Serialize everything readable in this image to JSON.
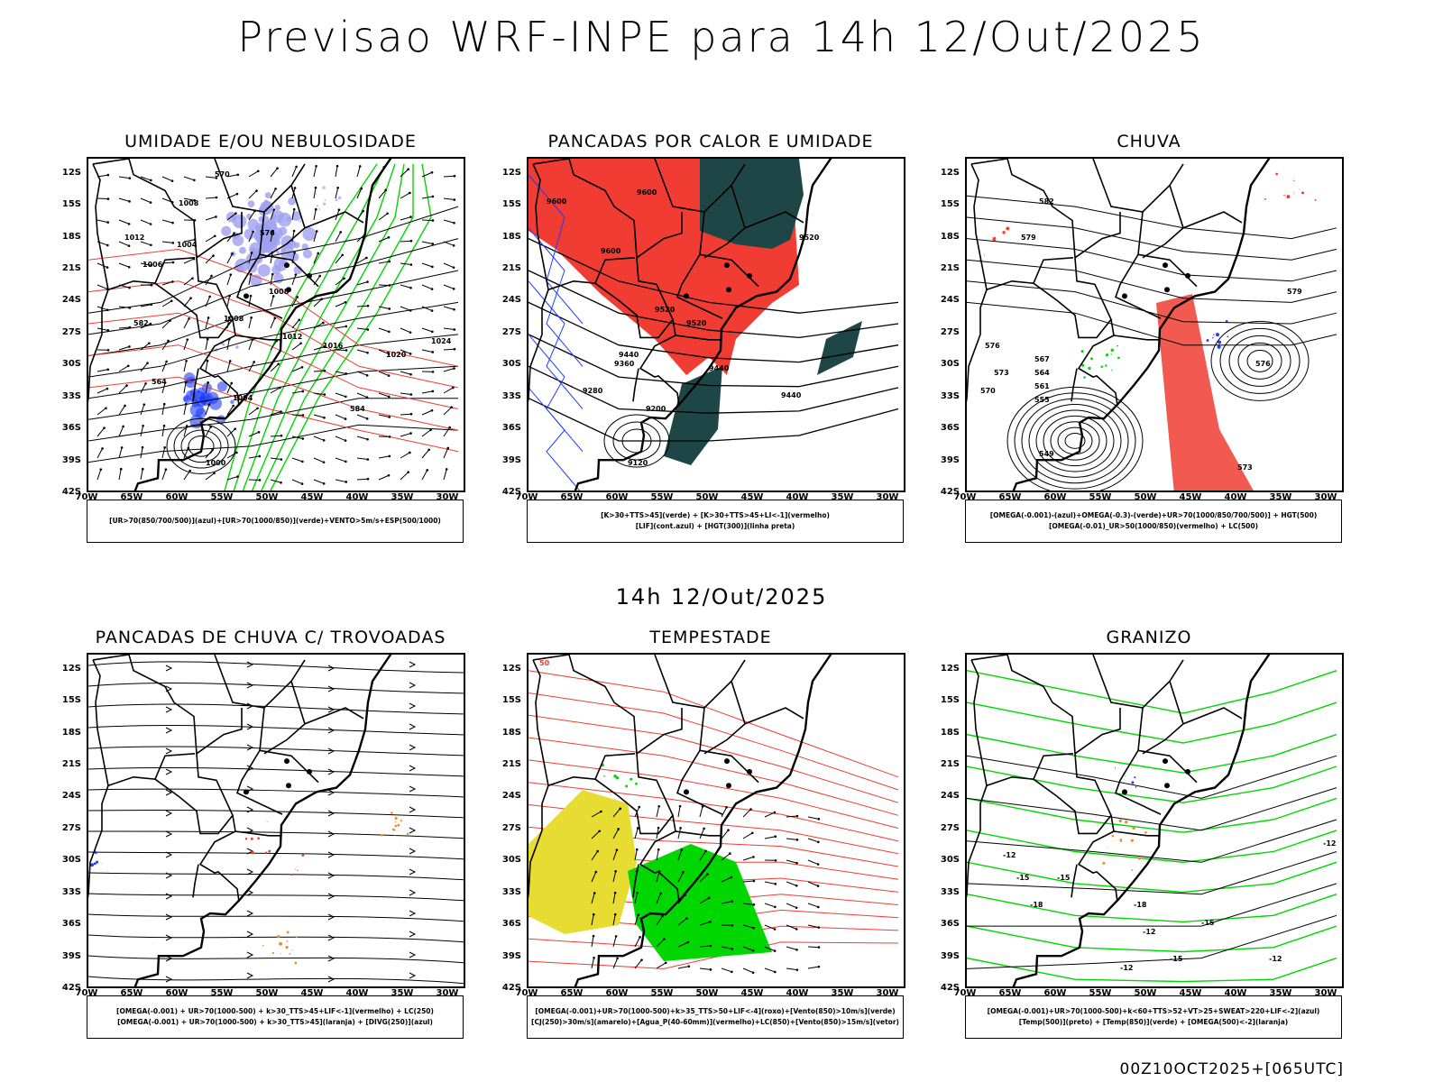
{
  "title": "Previsao WRF-INPE  para 14h 12/Out/2025",
  "subtitle": "14h 12/Out/2025",
  "footer": "00Z10OCT2025+[065UTC]",
  "axes": {
    "lat": [
      "12S",
      "15S",
      "18S",
      "21S",
      "24S",
      "27S",
      "30S",
      "33S",
      "36S",
      "39S",
      "42S"
    ],
    "lon": [
      "70W",
      "65W",
      "60W",
      "55W",
      "50W",
      "45W",
      "40W",
      "35W",
      "30W"
    ]
  },
  "panels": [
    {
      "title": "UMIDADE E/OU NEBULOSIDADE",
      "legend": [
        "[UR>70(850/700/500)](azul)+[UR>70(1000/850)](verde)+VENTO>5m/s+ESP(500/1000)"
      ],
      "labels": [
        "1008",
        "1012",
        "1004",
        "1006",
        "1008",
        "1008",
        "1012",
        "1016",
        "1020",
        "1024",
        "1000",
        "1004",
        "570",
        "576",
        "582",
        "584",
        "564"
      ]
    },
    {
      "title": "PANCADAS POR CALOR E UMIDADE",
      "legend": [
        "[K>30+TTS>45](verde) + [K>30+TTS>45+LI<-1](vermelho)",
        "[LIF](cont.azul) + [HGT(300)](linha preta)"
      ],
      "labels": [
        "9600",
        "9600",
        "9600",
        "9520",
        "9520",
        "9520",
        "9440",
        "9440",
        "9360",
        "9280",
        "9200",
        "9120",
        "9440"
      ]
    },
    {
      "title": "CHUVA",
      "legend": [
        "[OMEGA(-0.001)-(azul)+OMEGA(-0.3)-(verde)+UR>70(1000/850/700/500)] + HGT(500)",
        "[OMEGA(-0.01)_UR>50(1000/850)(vermelho) + LC(500)"
      ],
      "labels": [
        "582",
        "579",
        "576",
        "573",
        "570",
        "567",
        "564",
        "561",
        "555",
        "549",
        "579",
        "576",
        "573"
      ]
    },
    {
      "title": "PANCADAS DE CHUVA C/ TROVOADAS",
      "legend": [
        "[OMEGA(-0.001) + UR>70(1000-500) + k>30_TTS>45+LIF<-1](vermelho) + LC(250)",
        "[OMEGA(-0.001) + UR>70(1000-500) + k>30_TTS>45](laranja) + [DIVG(250)](azul)"
      ],
      "labels": []
    },
    {
      "title": "TEMPESTADE",
      "legend": [
        "[OMEGA(-0.001)+UR>70(1000-500)+k>35_TTS>50+LIF<-4](roxo)+[Vento(850)>10m/s](verde)",
        "[CJ(250)>30m/s](amarelo)+[Agua_P(40-60mm)](vermelho)+LC(850)+[Vento(850)>15m/s](vetor)"
      ],
      "labels": [
        "50"
      ]
    },
    {
      "title": "GRANIZO",
      "legend": [
        "[OMEGA(-0.001)+UR>70(1000-500)+k<60+TTS>52+VT>25+SWEAT>220+LIF<-2](azul)",
        "[Temp(500)](preto) + [Temp(850)](verde) + [OMEGA(500)<-2](laranja)"
      ],
      "labels": [
        "-12",
        "-15",
        "-15",
        "-18",
        "-12",
        "-12",
        "-15",
        "-18",
        "-12",
        "-15",
        "-12"
      ]
    }
  ],
  "colors": {
    "red": "#f03c32",
    "green": "#00d700",
    "blue": "#1e3cff",
    "lavender": "#a0a0f0",
    "darkgreen": "#1e4646",
    "yellow": "#e6dc32",
    "orange": "#f08c28",
    "black": "#000000"
  }
}
